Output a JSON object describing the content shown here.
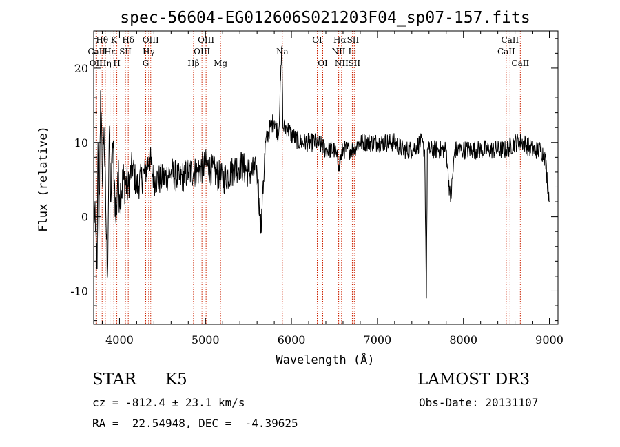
{
  "chart_data": {
    "type": "line",
    "title": "spec-56604-EG012606S021203F04_sp07-157.fits",
    "xlabel": "Wavelength (Å)",
    "ylabel": "Flux (relative)",
    "xlim": [
      3700,
      9100
    ],
    "ylim": [
      -14.5,
      25
    ],
    "xticks": [
      "4000",
      "5000",
      "6000",
      "7000",
      "8000",
      "9000"
    ],
    "yticks": [
      "-10",
      "0",
      "10",
      "20"
    ],
    "grid": false,
    "spectrum": {
      "name": "flux",
      "x": [
        3700,
        3720,
        3740,
        3750,
        3760,
        3780,
        3800,
        3820,
        3840,
        3860,
        3880,
        3900,
        3920,
        3940,
        3960,
        3980,
        4000,
        4050,
        4100,
        4150,
        4200,
        4250,
        4300,
        4350,
        4400,
        4500,
        4600,
        4700,
        4800,
        4900,
        5000,
        5100,
        5200,
        5300,
        5400,
        5500,
        5600,
        5650,
        5660,
        5700,
        5750,
        5800,
        5850,
        5890,
        5900,
        5950,
        6000,
        6100,
        6200,
        6300,
        6400,
        6500,
        6550,
        6600,
        6700,
        6800,
        6900,
        7000,
        7100,
        7200,
        7300,
        7400,
        7500,
        7550,
        7570,
        7580,
        7600,
        7700,
        7800,
        7850,
        7900,
        8000,
        8100,
        8200,
        8300,
        8400,
        8500,
        8600,
        8700,
        8800,
        8900,
        8950,
        9000
      ],
      "y": [
        2,
        -2,
        -7,
        10,
        -3,
        17,
        5,
        12,
        1,
        -8,
        11,
        2,
        10,
        5,
        -1,
        6,
        3,
        5,
        4,
        7,
        4,
        5,
        6,
        8,
        5,
        5,
        6,
        5,
        6,
        6,
        7,
        6,
        5,
        6,
        7,
        6,
        6,
        -2,
        2,
        10,
        12,
        13,
        11,
        23,
        12,
        12,
        11,
        10,
        10,
        10,
        9,
        9,
        7,
        9,
        9,
        10,
        10,
        10,
        10,
        10,
        9,
        9,
        10,
        9,
        -11,
        9,
        9,
        9,
        9,
        2,
        9,
        9,
        9,
        9,
        9,
        9,
        9,
        10,
        10,
        9,
        9,
        8,
        2
      ]
    },
    "lines": [
      {
        "label": "Hθ",
        "wl": 3798,
        "row": 1
      },
      {
        "label": "CaII",
        "wl": 3734,
        "row": 2
      },
      {
        "label": "OII",
        "wl": 3727,
        "row": 3
      },
      {
        "label": "Hη",
        "wl": 3835,
        "row": 3
      },
      {
        "label": "K",
        "wl": 3934,
        "row": 1
      },
      {
        "label": "Hε",
        "wl": 3889,
        "row": 2
      },
      {
        "label": "H",
        "wl": 3969,
        "row": 3
      },
      {
        "label": "Hδ",
        "wl": 4102,
        "row": 1
      },
      {
        "label": "SII",
        "wl": 4069,
        "row": 2
      },
      {
        "label": "OIII",
        "wl": 4363,
        "row": 1
      },
      {
        "label": "Hγ",
        "wl": 4340,
        "row": 2
      },
      {
        "label": "G",
        "wl": 4305,
        "row": 3
      },
      {
        "label": "Hβ",
        "wl": 4861,
        "row": 3
      },
      {
        "label": "OIII",
        "wl": 5007,
        "row": 1
      },
      {
        "label": "OIII",
        "wl": 4959,
        "row": 2
      },
      {
        "label": "Mg",
        "wl": 5175,
        "row": 3
      },
      {
        "label": "Na",
        "wl": 5894,
        "row": 2
      },
      {
        "label": "OI",
        "wl": 6300,
        "row": 1
      },
      {
        "label": "OI",
        "wl": 6364,
        "row": 3
      },
      {
        "label": "Hα",
        "wl": 6563,
        "row": 1
      },
      {
        "label": "NII",
        "wl": 6548,
        "row": 2
      },
      {
        "label": "NII",
        "wl": 6583,
        "row": 3
      },
      {
        "label": "SII",
        "wl": 6716,
        "row": 1
      },
      {
        "label": "Li",
        "wl": 6708,
        "row": 2
      },
      {
        "label": "SII",
        "wl": 6731,
        "row": 3
      },
      {
        "label": "CaII",
        "wl": 8542,
        "row": 1
      },
      {
        "label": "CaII",
        "wl": 8498,
        "row": 2
      },
      {
        "label": "CaII",
        "wl": 8662,
        "row": 3
      }
    ]
  },
  "info": {
    "object_class": "STAR",
    "subclass": "K5",
    "survey": "LAMOST DR3",
    "redshift_line": "cz = -812.4 ± 23.1 km/s",
    "obs_date": "Obs-Date: 20131107",
    "coords": "RA =  22.54948, DEC =  -4.39625"
  },
  "colors": {
    "line_markers": "#cc2200",
    "spectrum": "#000000",
    "axes": "#000000"
  }
}
